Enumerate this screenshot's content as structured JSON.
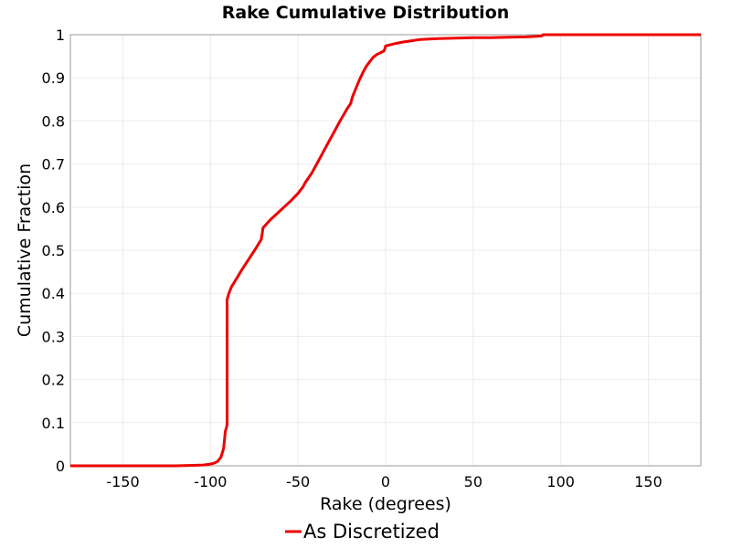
{
  "chart_data": {
    "type": "line",
    "title": "Rake Cumulative Distribution",
    "xlabel": "Rake (degrees)",
    "ylabel": "Cumulative Fraction",
    "xlim": [
      -180,
      180
    ],
    "ylim": [
      0,
      1
    ],
    "xticks": [
      "-150",
      "-100",
      "-50",
      "0",
      "50",
      "100",
      "150"
    ],
    "xtick_values": [
      -150,
      -100,
      -50,
      0,
      50,
      100,
      150
    ],
    "yticks": [
      "0",
      "0.1",
      "0.2",
      "0.3",
      "0.4",
      "0.5",
      "0.6",
      "0.7",
      "0.8",
      "0.9",
      "1"
    ],
    "ytick_values": [
      0,
      0.1,
      0.2,
      0.3,
      0.4,
      0.5,
      0.6,
      0.7,
      0.8,
      0.9,
      1
    ],
    "grid": true,
    "legend_position": "bottom-center",
    "color": "#ee0000",
    "series": [
      {
        "name": "As Discretized",
        "x": [
          -180,
          -120,
          -110,
          -104,
          -100,
          -98,
          -96,
          -94,
          -92.5,
          -91.5,
          -90.8,
          -90.5,
          -90.5,
          -89.5,
          -88,
          -85,
          -82,
          -78,
          -74,
          -71,
          -70.5,
          -70,
          -66,
          -62,
          -58,
          -54,
          -50,
          -47,
          -46,
          -42,
          -38,
          -34,
          -30,
          -26,
          -22,
          -20,
          -19,
          -17,
          -15,
          -13,
          -11,
          -9,
          -7,
          -5,
          -3,
          -1,
          -0.5,
          0,
          2,
          5,
          10,
          15,
          20,
          30,
          40,
          50,
          60,
          70,
          80,
          85,
          89,
          90,
          90.5,
          100,
          120,
          150,
          180
        ],
        "y": [
          0,
          0,
          0.001,
          0.002,
          0.004,
          0.006,
          0.01,
          0.02,
          0.04,
          0.08,
          0.09,
          0.096,
          0.385,
          0.4,
          0.415,
          0.435,
          0.455,
          0.48,
          0.505,
          0.525,
          0.538,
          0.552,
          0.57,
          0.585,
          0.6,
          0.615,
          0.632,
          0.648,
          0.656,
          0.68,
          0.71,
          0.74,
          0.77,
          0.8,
          0.828,
          0.84,
          0.855,
          0.875,
          0.895,
          0.912,
          0.927,
          0.938,
          0.948,
          0.954,
          0.958,
          0.962,
          0.966,
          0.974,
          0.976,
          0.979,
          0.983,
          0.986,
          0.989,
          0.991,
          0.992,
          0.993,
          0.993,
          0.994,
          0.995,
          0.996,
          0.997,
          1.0,
          1.0,
          1.0,
          1.0,
          1.0,
          1.0
        ]
      }
    ]
  }
}
